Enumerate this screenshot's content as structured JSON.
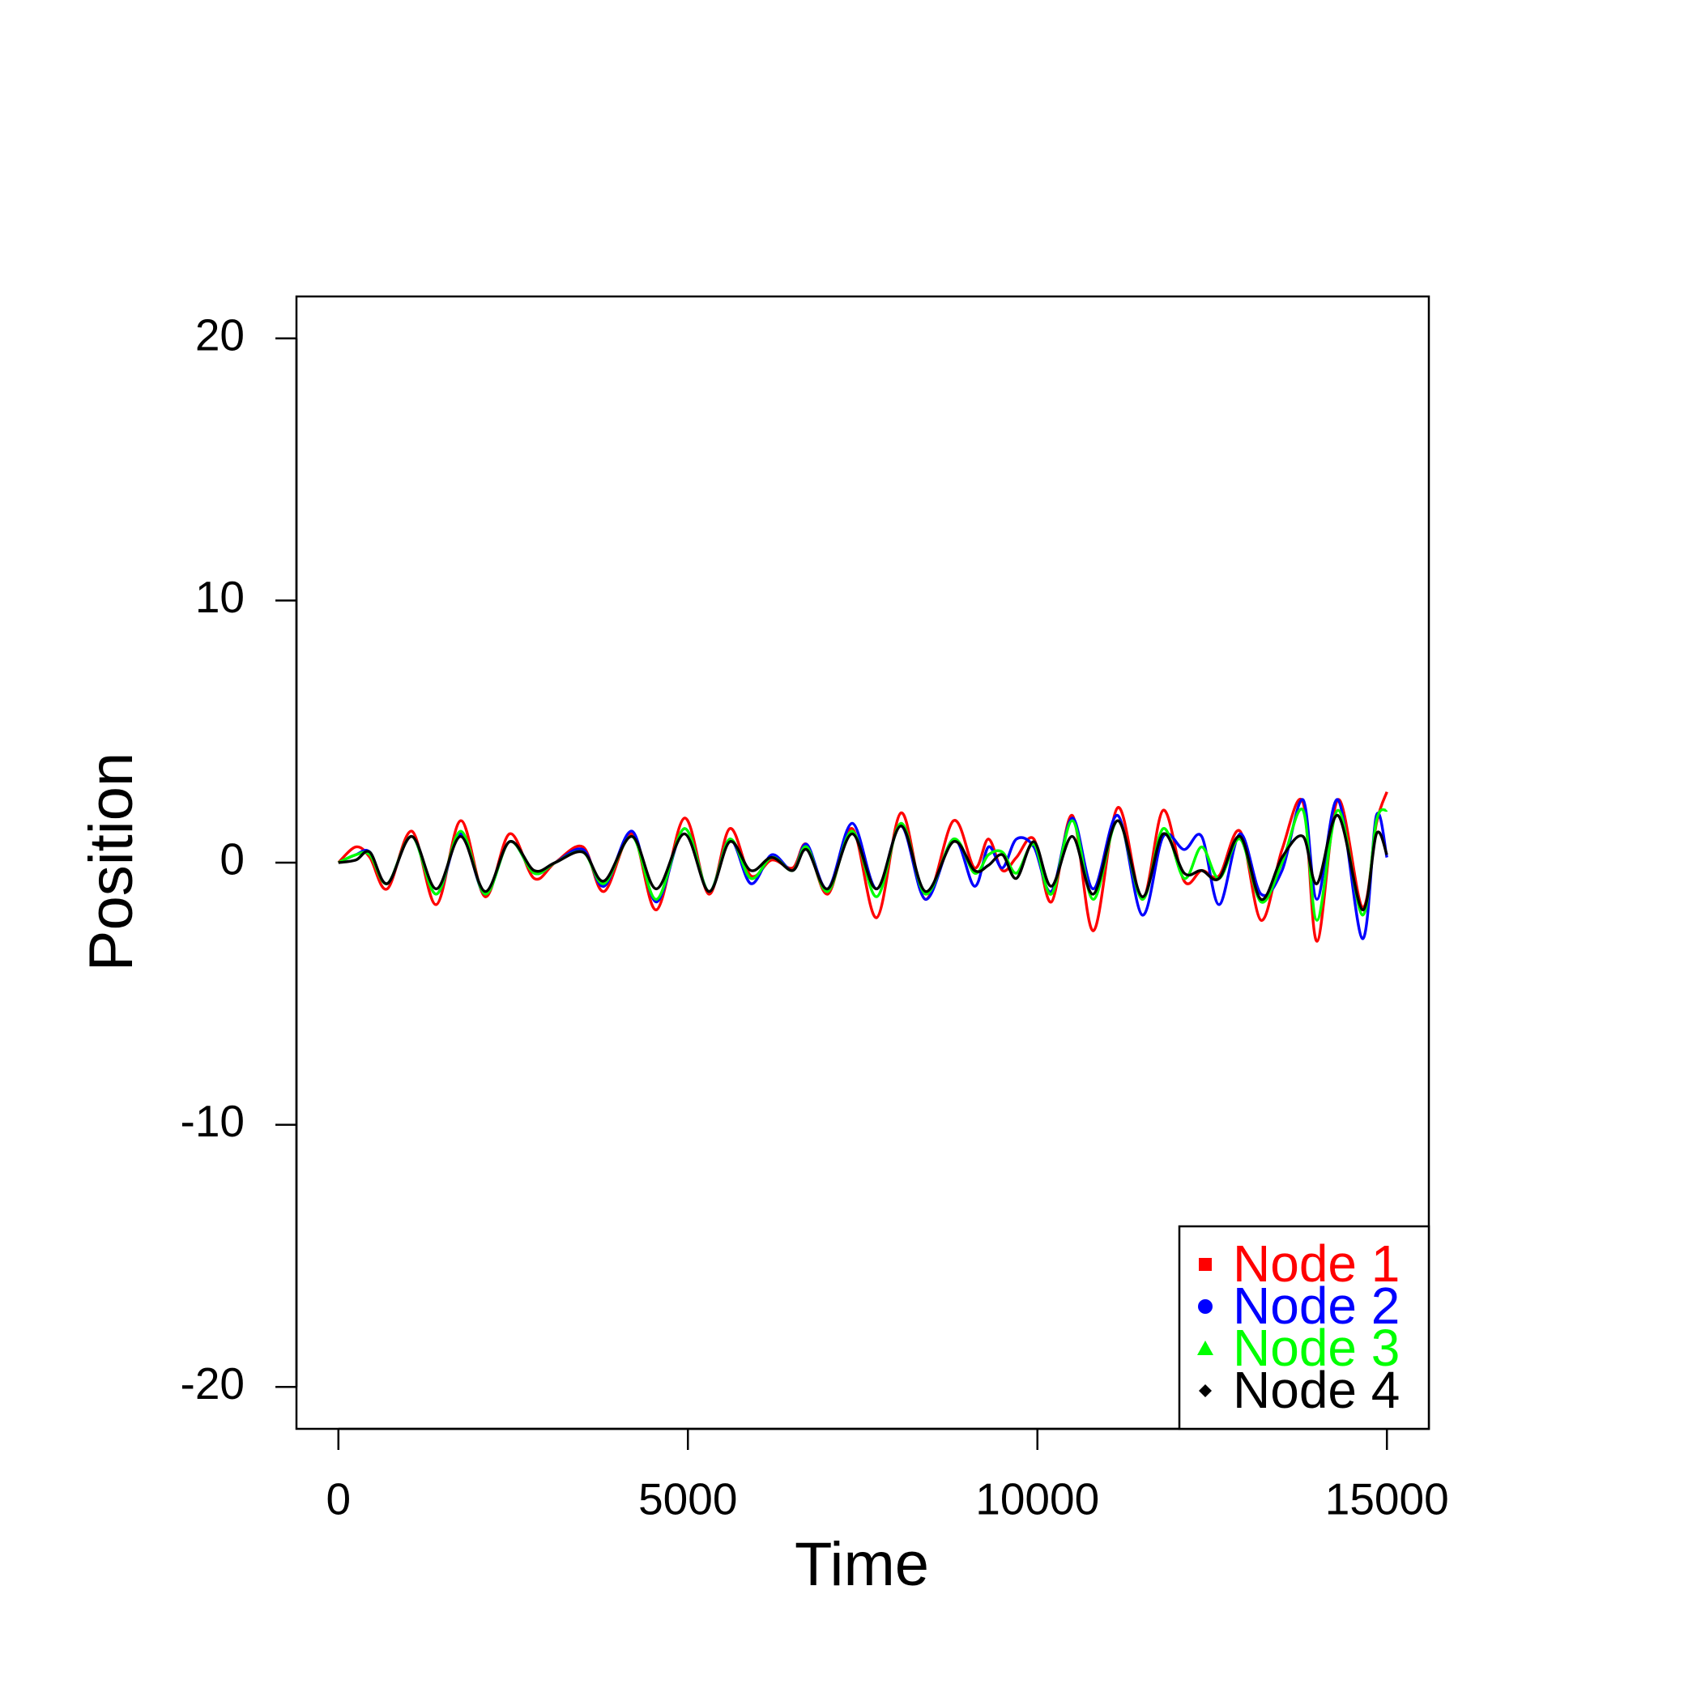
{
  "chart_data": {
    "type": "line",
    "xlabel": "Time",
    "ylabel": "Position",
    "x": [
      0,
      250,
      450,
      700,
      1050,
      1400,
      1750,
      2100,
      2450,
      2800,
      3100,
      3500,
      3800,
      4200,
      4550,
      4950,
      5300,
      5600,
      5900,
      6200,
      6500,
      6700,
      7000,
      7350,
      7700,
      8050,
      8400,
      8800,
      9100,
      9300,
      9500,
      9700,
      9950,
      10200,
      10500,
      10800,
      11150,
      11500,
      11800,
      12100,
      12350,
      12600,
      12900,
      13200,
      13500,
      13800,
      14000,
      14300,
      14650,
      14850,
      15000
    ],
    "series": [
      {
        "name": "Node 1",
        "color": "#ff0000",
        "marker": "square",
        "values": [
          0,
          0.6,
          0.2,
          -1.0,
          1.2,
          -1.6,
          1.6,
          -1.3,
          1.1,
          -0.6,
          0,
          0.6,
          -1.1,
          1.1,
          -1.8,
          1.7,
          -1.2,
          1.3,
          -0.5,
          0.1,
          -0.2,
          0.7,
          -1.2,
          1.3,
          -2.1,
          1.9,
          -1.4,
          1.6,
          -0.2,
          0.9,
          -0.3,
          0.2,
          0.9,
          -1.5,
          1.8,
          -2.6,
          2.1,
          -1.4,
          2.0,
          -0.7,
          -0.3,
          -0.5,
          1.2,
          -2.2,
          0.5,
          2.3,
          -3.0,
          2.4,
          -1.7,
          1.5,
          2.7
        ]
      },
      {
        "name": "Node 2",
        "color": "#0000ff",
        "marker": "circle",
        "values": [
          0,
          0.3,
          0.4,
          -0.8,
          1.0,
          -1.2,
          1.1,
          -1.2,
          0.8,
          -0.4,
          0,
          0.5,
          -0.9,
          1.2,
          -1.5,
          1.3,
          -1.1,
          0.9,
          -0.8,
          0.3,
          -0.3,
          0.7,
          -1.0,
          1.5,
          -1.0,
          1.4,
          -1.4,
          0.9,
          -0.9,
          0.6,
          -0.2,
          0.9,
          0.6,
          -1.1,
          1.7,
          -1.0,
          1.8,
          -2.0,
          1.0,
          0.5,
          1.0,
          -1.6,
          1.1,
          -1.2,
          -0.3,
          2.4,
          -1.4,
          2.4,
          -2.9,
          1.8,
          0.2
        ]
      },
      {
        "name": "Node 3",
        "color": "#00ff00",
        "marker": "triangle",
        "values": [
          0,
          0.3,
          0.3,
          -0.8,
          1.0,
          -1.2,
          1.2,
          -1.2,
          0.8,
          -0.4,
          0,
          0.4,
          -0.8,
          1.0,
          -1.4,
          1.3,
          -1.1,
          0.9,
          -0.6,
          0.2,
          -0.3,
          0.6,
          -1.1,
          1.2,
          -1.3,
          1.5,
          -1.2,
          0.9,
          -0.4,
          0.3,
          0.4,
          -0.4,
          0.7,
          -1.2,
          1.6,
          -1.4,
          1.6,
          -1.4,
          1.3,
          -0.6,
          0.6,
          -0.6,
          0.9,
          -1.5,
          0,
          2.0,
          -2.2,
          2.0,
          -2.0,
          1.6,
          2.0
        ]
      },
      {
        "name": "Node 4",
        "color": "#000000",
        "marker": "diamond",
        "values": [
          0,
          0.1,
          0.4,
          -0.8,
          1.0,
          -1.0,
          1.0,
          -1.1,
          0.8,
          -0.3,
          0,
          0.4,
          -0.7,
          1.0,
          -1.0,
          1.1,
          -1.1,
          0.8,
          -0.3,
          0.2,
          -0.3,
          0.5,
          -1.0,
          1.1,
          -1.0,
          1.4,
          -1.1,
          0.8,
          -0.3,
          -0.1,
          0.3,
          -0.6,
          0.8,
          -0.9,
          1.0,
          -1.2,
          1.6,
          -1.3,
          1.1,
          -0.4,
          -0.3,
          -0.6,
          1.0,
          -1.4,
          0.2,
          1.0,
          -0.8,
          1.8,
          -1.8,
          1.1,
          0.3
        ]
      }
    ],
    "xlim": [
      -600,
      15600
    ],
    "ylim": [
      -21.6,
      21.6
    ],
    "xticks": [
      0,
      5000,
      10000,
      15000
    ],
    "yticks": [
      -20,
      -10,
      0,
      10,
      20
    ],
    "grid": false,
    "legend": "bottom-right"
  }
}
